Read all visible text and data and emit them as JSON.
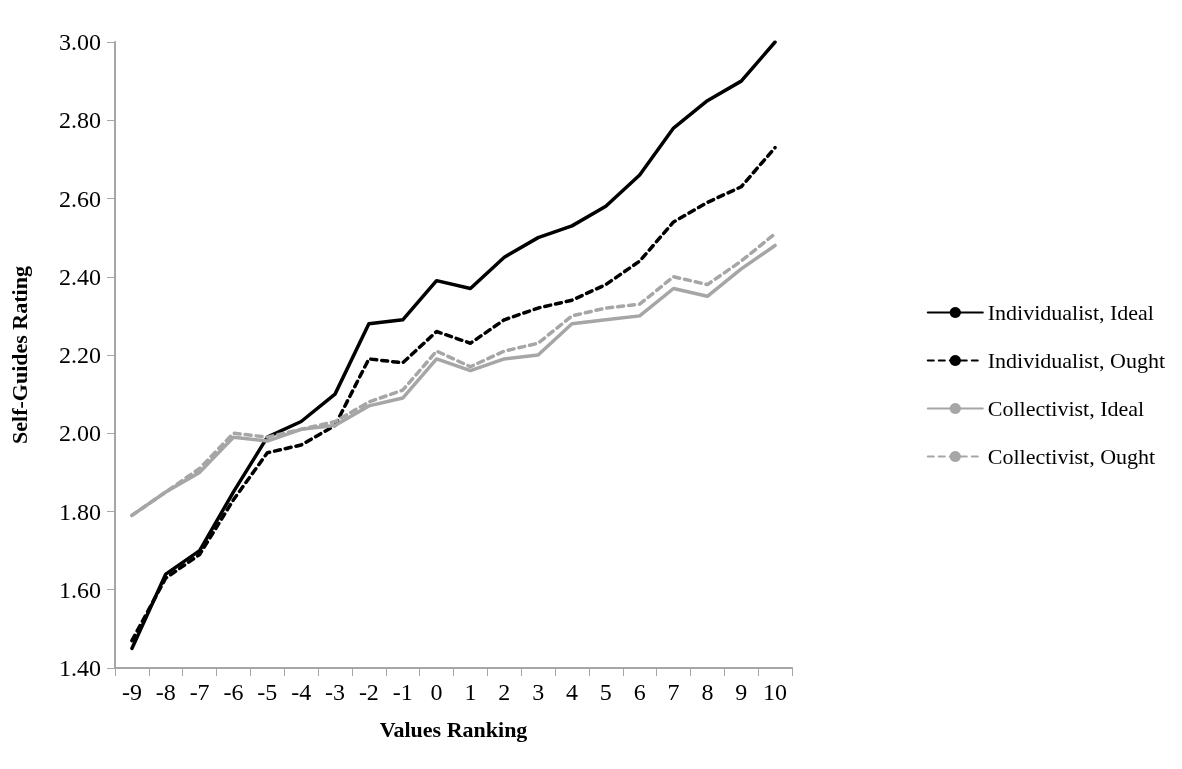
{
  "chart_data": {
    "type": "line",
    "xlabel": "Values Ranking",
    "ylabel": "Self-Guides Rating",
    "categories": [
      "-9",
      "-8",
      "-7",
      "-6",
      "-5",
      "-4",
      "-3",
      "-2",
      "-1",
      "0",
      "1",
      "2",
      "3",
      "4",
      "5",
      "6",
      "7",
      "8",
      "9",
      "10"
    ],
    "series": [
      {
        "name": "Individualist, Ideal",
        "color": "#000000",
        "line_style": "solid",
        "values": [
          1.45,
          1.64,
          1.7,
          1.85,
          1.99,
          2.03,
          2.1,
          2.28,
          2.29,
          2.39,
          2.37,
          2.45,
          2.5,
          2.53,
          2.58,
          2.66,
          2.78,
          2.85,
          2.9,
          3.0
        ]
      },
      {
        "name": "Individualist, Ought",
        "color": "#000000",
        "line_style": "dashed",
        "values": [
          1.47,
          1.63,
          1.69,
          1.83,
          1.95,
          1.97,
          2.02,
          2.19,
          2.18,
          2.26,
          2.23,
          2.29,
          2.32,
          2.34,
          2.38,
          2.44,
          2.54,
          2.59,
          2.63,
          2.73
        ]
      },
      {
        "name": "Collectivist, Ideal",
        "color": "#a6a6a6",
        "line_style": "solid",
        "values": [
          1.79,
          1.85,
          1.9,
          1.99,
          1.98,
          2.01,
          2.02,
          2.07,
          2.09,
          2.19,
          2.16,
          2.19,
          2.2,
          2.28,
          2.29,
          2.3,
          2.37,
          2.35,
          2.42,
          2.48
        ]
      },
      {
        "name": "Collectivist, Ought",
        "color": "#a6a6a6",
        "line_style": "dashed",
        "values": [
          1.79,
          1.85,
          1.91,
          2.0,
          1.99,
          2.01,
          2.03,
          2.08,
          2.11,
          2.21,
          2.17,
          2.21,
          2.23,
          2.3,
          2.32,
          2.33,
          2.4,
          2.38,
          2.44,
          2.51
        ]
      }
    ],
    "ylim": [
      1.4,
      3.0
    ],
    "yticks": [
      {
        "value": 1.4,
        "label": "1.40"
      },
      {
        "value": 1.6,
        "label": "1.60"
      },
      {
        "value": 1.8,
        "label": "1.80"
      },
      {
        "value": 2.0,
        "label": "2.00"
      },
      {
        "value": 2.2,
        "label": "2.20"
      },
      {
        "value": 2.4,
        "label": "2.40"
      },
      {
        "value": 2.6,
        "label": "2.60"
      },
      {
        "value": 2.8,
        "label": "2.80"
      },
      {
        "value": 3.0,
        "label": "3.00"
      }
    ],
    "grid": false,
    "legend": "right",
    "marker": "none"
  }
}
